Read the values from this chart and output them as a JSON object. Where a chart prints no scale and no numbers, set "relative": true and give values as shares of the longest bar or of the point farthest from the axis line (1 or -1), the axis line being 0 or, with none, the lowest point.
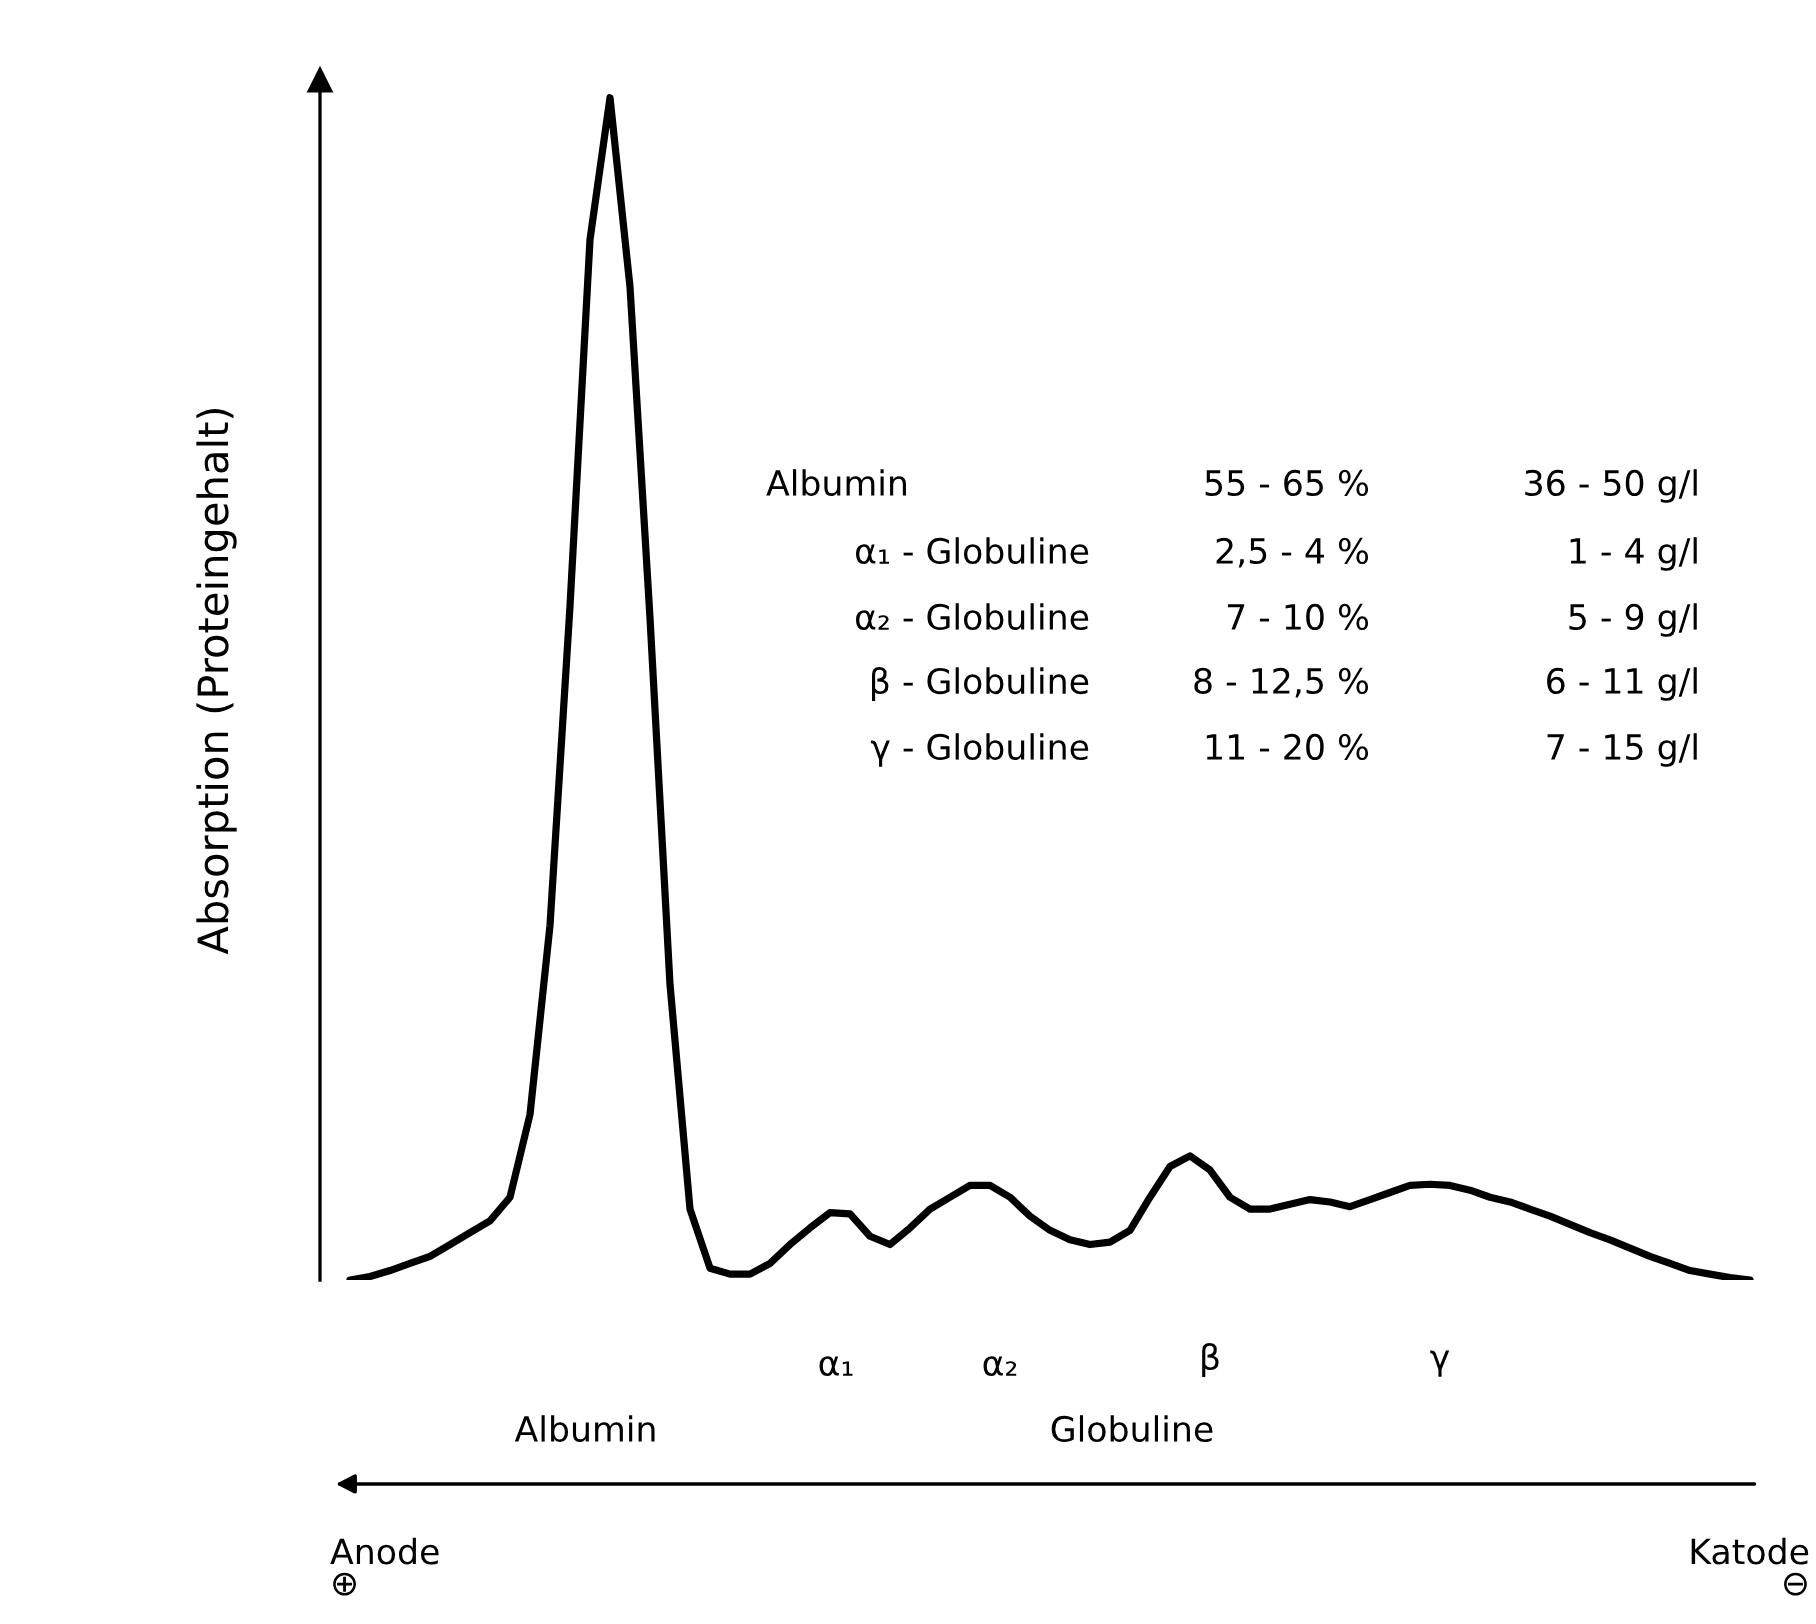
{
  "chart_data": {
    "type": "line",
    "relative": true,
    "ylabel": "Absorption (Proteingehalt)",
    "categories": [
      null,
      null,
      null,
      null,
      null,
      null,
      null,
      null,
      null,
      null,
      null,
      null,
      null,
      null,
      null,
      null,
      null,
      null,
      null,
      null,
      null,
      null,
      null,
      null,
      null,
      null,
      null,
      null,
      null,
      null,
      null,
      null,
      null,
      null,
      null,
      null,
      null,
      null,
      null,
      null,
      null,
      null,
      null,
      null,
      null,
      null,
      null,
      null,
      null,
      null,
      null,
      null,
      null,
      null,
      null,
      null,
      null,
      null,
      null,
      null,
      null,
      null,
      null,
      null,
      null,
      null,
      null,
      null,
      null,
      null,
      null
    ],
    "series": [
      {
        "color": "#000000",
        "values": [
          0,
          0.003,
          0.008,
          0.014,
          0.02,
          0.03,
          0.04,
          0.05,
          0.07,
          0.14,
          0.3,
          0.57,
          0.88,
          1.0,
          0.84,
          0.56,
          0.25,
          0.06,
          0.01,
          0.005,
          0.005,
          0.014,
          0.03,
          0.044,
          0.057,
          0.056,
          0.037,
          0.03,
          0.044,
          0.06,
          0.07,
          0.08,
          0.08,
          0.07,
          0.054,
          0.042,
          0.034,
          0.03,
          0.032,
          0.042,
          0.07,
          0.096,
          0.105,
          0.093,
          0.07,
          0.06,
          0.06,
          0.064,
          0.068,
          0.066,
          0.062,
          0.068,
          0.074,
          0.08,
          0.081,
          0.08,
          0.076,
          0.07,
          0.066,
          0.06,
          0.054,
          0.047,
          0.04,
          0.034,
          0.027,
          0.02,
          0.014,
          0.008,
          0.005,
          0.002,
          0
        ]
      }
    ],
    "annotations": [
      "Albumin",
      "55 - 65 %",
      "36 - 50 g/l",
      "α₁ - Globuline",
      "2,5 - 4 %",
      "1 - 4 g/l",
      "α₂ - Globuline",
      "7 - 10 %",
      "5 - 9 g/l",
      "β - Globuline",
      "8 - 12,5 %",
      "6 - 11 g/l",
      "γ - Globuline",
      "11 - 20 %",
      "7 - 15 g/l",
      "α₁",
      "α₂",
      "β",
      "γ",
      "Albumin",
      "Globuline",
      "Anode\n⊕",
      "Katode\n⊖"
    ]
  }
}
